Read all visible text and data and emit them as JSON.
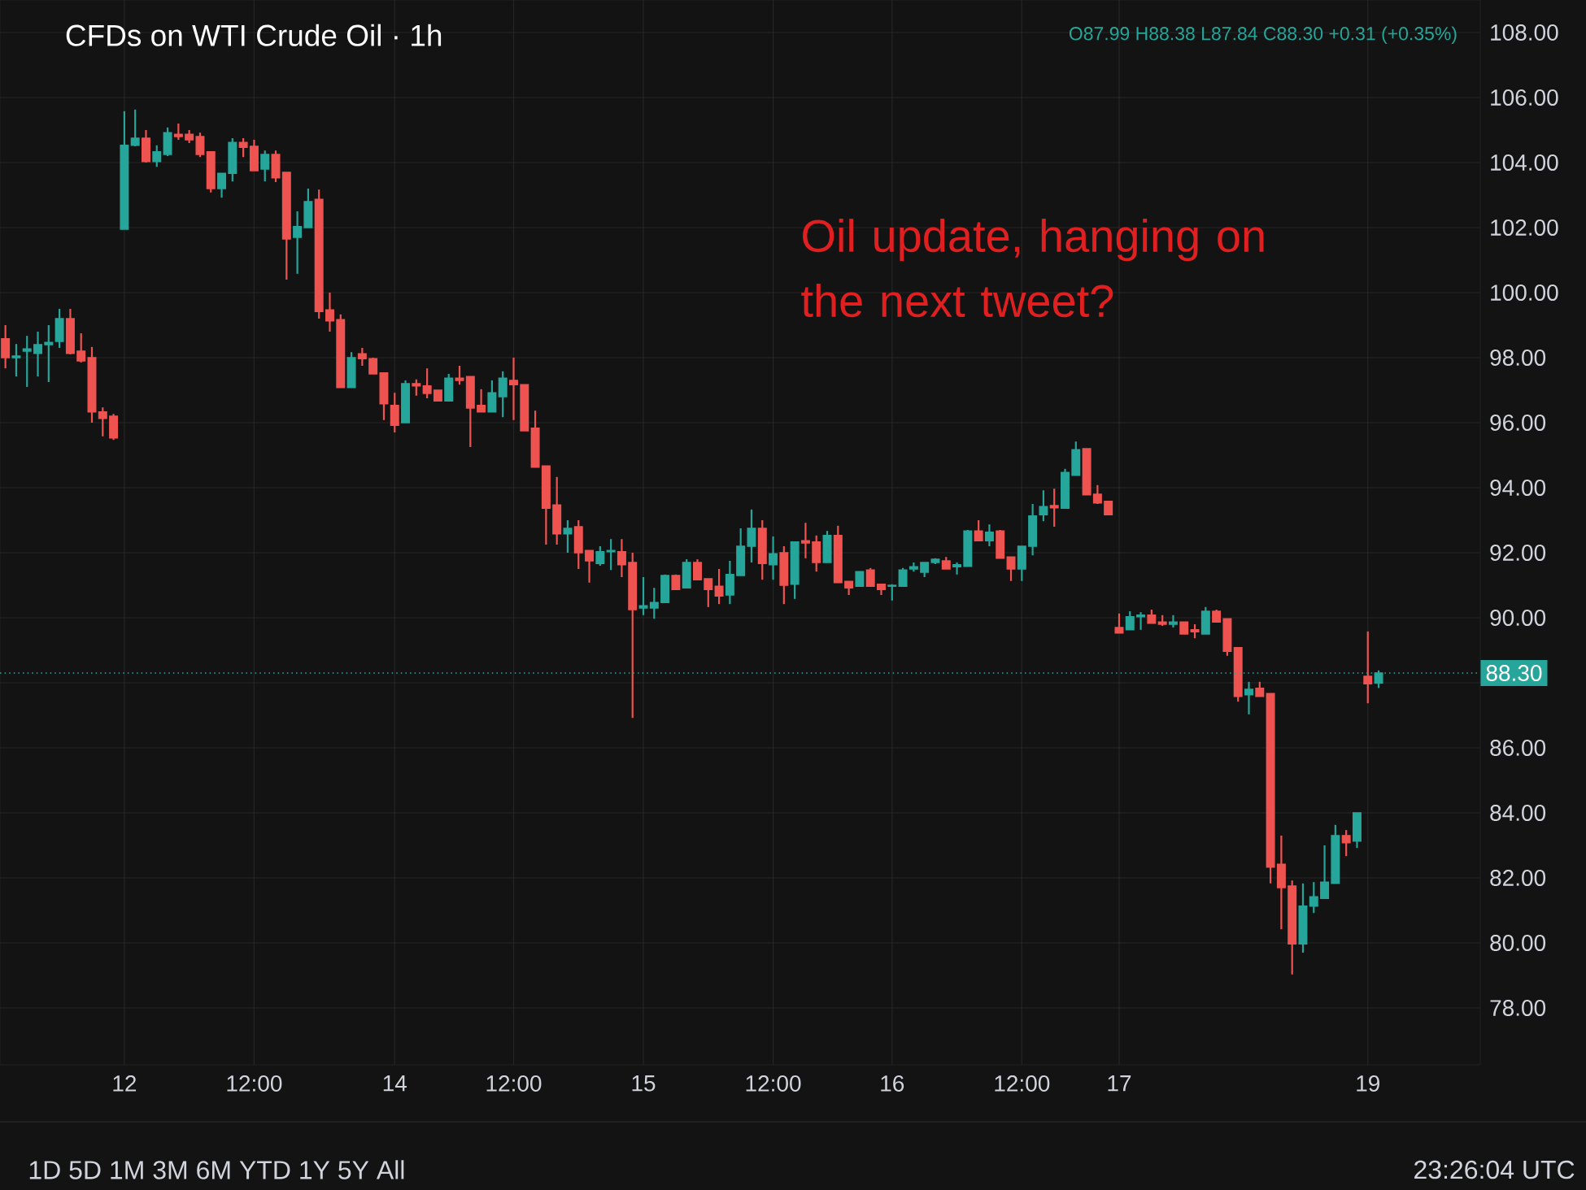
{
  "chart_data": {
    "type": "candlestick",
    "title": "CFDs on WTI Crude Oil · 1h",
    "annotations": [
      "O87.99 H88.38 L87.84 C88.30 +0.31 (+0.35%)",
      "Oil update, hanging on the next tweet?",
      "1D 5D 1M 3M 6M YTD 1Y 5Y All",
      "23:26:04 UTC"
    ],
    "categories": [
      null,
      null,
      null,
      null,
      null,
      null,
      null,
      null,
      null,
      null,
      null,
      "12",
      null,
      null,
      null,
      null,
      null,
      null,
      null,
      null,
      null,
      null,
      null,
      "12:00",
      null,
      null,
      null,
      null,
      null,
      null,
      null,
      null,
      null,
      null,
      null,
      null,
      "14",
      null,
      null,
      null,
      null,
      null,
      null,
      null,
      null,
      null,
      null,
      "12:00",
      null,
      null,
      null,
      null,
      null,
      null,
      null,
      null,
      null,
      null,
      null,
      "15",
      null,
      null,
      null,
      null,
      null,
      null,
      null,
      null,
      null,
      null,
      null,
      "12:00",
      null,
      null,
      null,
      null,
      null,
      null,
      null,
      null,
      null,
      null,
      "16",
      null,
      null,
      null,
      null,
      null,
      null,
      null,
      null,
      null,
      null,
      null,
      "12:00",
      null,
      null,
      null,
      null,
      null,
      null,
      null,
      null,
      "17",
      null,
      null,
      null,
      null,
      null,
      null,
      null,
      null,
      null,
      null,
      null,
      null,
      null,
      null,
      null,
      null,
      null,
      null,
      null,
      null,
      null,
      null,
      "19",
      null
    ],
    "ohlc": [
      [
        98.58,
        99.0,
        97.67,
        98.0
      ],
      [
        98.0,
        98.42,
        97.42,
        98.05
      ],
      [
        98.2,
        98.67,
        97.1,
        98.27
      ],
      [
        98.13,
        98.8,
        97.42,
        98.4
      ],
      [
        98.4,
        99.0,
        97.25,
        98.47
      ],
      [
        98.5,
        99.5,
        98.3,
        99.2
      ],
      [
        99.2,
        99.5,
        98.1,
        98.13
      ],
      [
        98.2,
        98.75,
        97.85,
        97.9
      ],
      [
        98.0,
        98.33,
        96.0,
        96.33
      ],
      [
        96.33,
        96.47,
        95.58,
        96.13
      ],
      [
        96.2,
        96.27,
        95.47,
        95.53
      ],
      [
        101.95,
        105.58,
        101.95,
        104.53
      ],
      [
        104.53,
        105.63,
        104.5,
        104.75
      ],
      [
        104.75,
        105.0,
        104.0,
        104.03
      ],
      [
        104.03,
        104.53,
        103.87,
        104.33
      ],
      [
        104.25,
        105.08,
        104.2,
        104.92
      ],
      [
        104.87,
        105.2,
        104.7,
        104.8
      ],
      [
        104.87,
        105.0,
        104.6,
        104.7
      ],
      [
        104.8,
        104.92,
        104.17,
        104.25
      ],
      [
        104.33,
        104.33,
        103.08,
        103.2
      ],
      [
        103.2,
        103.67,
        102.92,
        103.67
      ],
      [
        103.67,
        104.75,
        103.42,
        104.62
      ],
      [
        104.62,
        104.75,
        104.17,
        104.47
      ],
      [
        104.5,
        104.7,
        103.75,
        103.75
      ],
      [
        103.8,
        104.37,
        103.42,
        104.25
      ],
      [
        104.25,
        104.37,
        103.4,
        103.53
      ],
      [
        103.7,
        103.7,
        100.4,
        101.65
      ],
      [
        101.7,
        102.5,
        100.58,
        102.03
      ],
      [
        102.0,
        103.2,
        102.0,
        102.8
      ],
      [
        102.87,
        103.17,
        99.2,
        99.42
      ],
      [
        99.47,
        100.0,
        98.8,
        99.13
      ],
      [
        99.17,
        99.33,
        97.08,
        97.08
      ],
      [
        97.08,
        98.17,
        97.08,
        98.0
      ],
      [
        98.12,
        98.3,
        97.75,
        97.97
      ],
      [
        97.97,
        98.0,
        97.5,
        97.5
      ],
      [
        97.53,
        97.53,
        96.08,
        96.58
      ],
      [
        96.53,
        96.92,
        95.7,
        95.92
      ],
      [
        96.0,
        97.3,
        96.0,
        97.2
      ],
      [
        97.2,
        97.33,
        96.83,
        97.13
      ],
      [
        97.13,
        97.67,
        96.75,
        96.9
      ],
      [
        97.0,
        97.0,
        96.67,
        96.67
      ],
      [
        96.67,
        97.5,
        96.67,
        97.37
      ],
      [
        97.37,
        97.75,
        97.17,
        97.3
      ],
      [
        97.42,
        97.42,
        95.25,
        96.45
      ],
      [
        96.53,
        97.03,
        96.33,
        96.33
      ],
      [
        96.33,
        97.3,
        96.33,
        96.92
      ],
      [
        96.8,
        97.58,
        96.17,
        97.37
      ],
      [
        97.3,
        98.0,
        96.08,
        97.17
      ],
      [
        97.17,
        97.17,
        95.75,
        95.75
      ],
      [
        95.83,
        96.37,
        94.63,
        94.63
      ],
      [
        94.67,
        94.67,
        92.25,
        93.37
      ],
      [
        93.47,
        94.33,
        92.25,
        92.58
      ],
      [
        92.58,
        93.0,
        92.0,
        92.75
      ],
      [
        92.8,
        93.0,
        91.5,
        92.0
      ],
      [
        92.07,
        92.07,
        91.08,
        91.75
      ],
      [
        91.67,
        92.2,
        91.6,
        92.03
      ],
      [
        92.03,
        92.42,
        91.47,
        92.07
      ],
      [
        92.03,
        92.42,
        91.25,
        91.63
      ],
      [
        91.7,
        92.0,
        86.92,
        90.25
      ],
      [
        90.3,
        91.25,
        90.08,
        90.37
      ],
      [
        90.3,
        90.92,
        89.97,
        90.47
      ],
      [
        90.47,
        91.33,
        90.47,
        91.3
      ],
      [
        91.3,
        91.33,
        90.87,
        90.87
      ],
      [
        90.92,
        91.8,
        90.92,
        91.7
      ],
      [
        91.7,
        91.8,
        91.17,
        91.17
      ],
      [
        91.2,
        91.2,
        90.33,
        90.87
      ],
      [
        90.97,
        91.5,
        90.42,
        90.67
      ],
      [
        90.7,
        91.75,
        90.42,
        91.33
      ],
      [
        91.3,
        92.75,
        91.3,
        92.2
      ],
      [
        92.2,
        93.33,
        91.7,
        92.75
      ],
      [
        92.75,
        93.0,
        91.17,
        91.67
      ],
      [
        91.63,
        92.5,
        91.17,
        91.97
      ],
      [
        92.0,
        92.2,
        90.42,
        91.0
      ],
      [
        91.03,
        92.33,
        90.58,
        92.33
      ],
      [
        92.37,
        92.92,
        91.83,
        92.3
      ],
      [
        92.33,
        92.53,
        91.42,
        91.7
      ],
      [
        91.7,
        92.67,
        91.7,
        92.53
      ],
      [
        92.53,
        92.83,
        91.08,
        91.08
      ],
      [
        91.12,
        91.12,
        90.7,
        90.92
      ],
      [
        90.97,
        91.42,
        90.97,
        91.42
      ],
      [
        91.47,
        91.53,
        90.97,
        90.97
      ],
      [
        91.03,
        91.03,
        90.7,
        90.87
      ],
      [
        90.97,
        91.03,
        90.53,
        91.0
      ],
      [
        90.97,
        91.53,
        90.97,
        91.47
      ],
      [
        91.5,
        91.7,
        91.42,
        91.57
      ],
      [
        91.4,
        91.7,
        91.25,
        91.7
      ],
      [
        91.7,
        91.83,
        91.65,
        91.8
      ],
      [
        91.75,
        91.87,
        91.5,
        91.5
      ],
      [
        91.57,
        91.7,
        91.33,
        91.63
      ],
      [
        91.58,
        92.7,
        91.58,
        92.67
      ],
      [
        92.67,
        93.0,
        92.37,
        92.37
      ],
      [
        92.37,
        92.87,
        92.2,
        92.63
      ],
      [
        92.67,
        92.7,
        91.83,
        91.83
      ],
      [
        91.87,
        91.87,
        91.13,
        91.5
      ],
      [
        91.5,
        92.2,
        91.13,
        92.2
      ],
      [
        92.2,
        93.5,
        91.92,
        93.13
      ],
      [
        93.17,
        93.92,
        92.97,
        93.42
      ],
      [
        93.45,
        93.97,
        92.8,
        93.38
      ],
      [
        93.37,
        94.58,
        93.37,
        94.47
      ],
      [
        94.38,
        95.42,
        94.38,
        95.17
      ],
      [
        95.2,
        95.2,
        93.78,
        93.78
      ],
      [
        93.8,
        94.08,
        93.5,
        93.53
      ],
      [
        93.58,
        93.58,
        93.17,
        93.17
      ],
      [
        89.7,
        90.13,
        89.53,
        89.53
      ],
      [
        89.63,
        90.2,
        89.63,
        90.03
      ],
      [
        90.03,
        90.17,
        89.63,
        90.08
      ],
      [
        90.08,
        90.25,
        89.83,
        89.83
      ],
      [
        89.87,
        90.08,
        89.75,
        89.8
      ],
      [
        89.8,
        90.08,
        89.7,
        89.87
      ],
      [
        89.87,
        89.87,
        89.5,
        89.5
      ],
      [
        89.63,
        89.8,
        89.37,
        89.57
      ],
      [
        89.5,
        90.33,
        89.5,
        90.2
      ],
      [
        90.2,
        90.25,
        89.87,
        89.87
      ],
      [
        89.97,
        89.97,
        88.83,
        88.97
      ],
      [
        89.08,
        89.08,
        87.42,
        87.58
      ],
      [
        87.63,
        88.03,
        87.03,
        87.8
      ],
      [
        87.83,
        88.03,
        87.58,
        87.58
      ],
      [
        87.67,
        87.67,
        81.83,
        82.33
      ],
      [
        82.42,
        83.3,
        80.42,
        81.7
      ],
      [
        81.75,
        81.92,
        79.03,
        79.97
      ],
      [
        79.97,
        81.83,
        79.7,
        81.13
      ],
      [
        81.13,
        81.87,
        80.92,
        81.42
      ],
      [
        81.37,
        83.0,
        81.37,
        81.87
      ],
      [
        81.83,
        83.63,
        81.83,
        83.3
      ],
      [
        83.3,
        83.47,
        82.67,
        83.08
      ],
      [
        83.13,
        84.0,
        82.92,
        84.0
      ],
      [
        88.2,
        89.58,
        87.37,
        87.97
      ],
      [
        87.99,
        88.38,
        87.84,
        88.3
      ]
    ],
    "colors": [
      "#ef5350",
      "#26a69a",
      "#26a69a",
      "#26a69a",
      "#26a69a",
      "#26a69a",
      "#ef5350",
      "#ef5350",
      "#ef5350",
      "#ef5350",
      "#ef5350",
      "#26a69a",
      "#26a69a",
      "#ef5350",
      "#26a69a",
      "#26a69a",
      "#ef5350",
      "#ef5350",
      "#ef5350",
      "#ef5350",
      "#26a69a",
      "#26a69a",
      "#ef5350",
      "#ef5350",
      "#26a69a",
      "#ef5350",
      "#ef5350",
      "#26a69a",
      "#26a69a",
      "#ef5350",
      "#ef5350",
      "#ef5350",
      "#26a69a",
      "#ef5350",
      "#ef5350",
      "#ef5350",
      "#ef5350",
      "#26a69a",
      "#ef5350",
      "#ef5350",
      "#ef5350",
      "#26a69a",
      "#ef5350",
      "#ef5350",
      "#ef5350",
      "#26a69a",
      "#26a69a",
      "#ef5350",
      "#ef5350",
      "#ef5350",
      "#ef5350",
      "#ef5350",
      "#26a69a",
      "#ef5350",
      "#ef5350",
      "#26a69a",
      "#26a69a",
      "#ef5350",
      "#ef5350",
      "#26a69a",
      "#26a69a",
      "#26a69a",
      "#ef5350",
      "#26a69a",
      "#ef5350",
      "#ef5350",
      "#ef5350",
      "#26a69a",
      "#26a69a",
      "#26a69a",
      "#ef5350",
      "#26a69a",
      "#ef5350",
      "#26a69a",
      "#ef5350",
      "#ef5350",
      "#26a69a",
      "#ef5350",
      "#ef5350",
      "#26a69a",
      "#ef5350",
      "#ef5350",
      "#26a69a",
      "#26a69a",
      "#26a69a",
      "#26a69a",
      "#26a69a",
      "#ef5350",
      "#26a69a",
      "#26a69a",
      "#ef5350",
      "#26a69a",
      "#ef5350",
      "#ef5350",
      "#26a69a",
      "#26a69a",
      "#26a69a",
      "#ef5350",
      "#26a69a",
      "#26a69a",
      "#ef5350",
      "#ef5350",
      "#ef5350",
      "#ef5350",
      "#26a69a",
      "#26a69a",
      "#ef5350",
      "#ef5350",
      "#26a69a",
      "#ef5350",
      "#ef5350",
      "#26a69a",
      "#ef5350",
      "#ef5350",
      "#ef5350",
      "#26a69a",
      "#ef5350",
      "#ef5350",
      "#ef5350",
      "#ef5350",
      "#26a69a",
      "#26a69a",
      "#26a69a",
      "#26a69a",
      "#ef5350",
      "#26a69a",
      "#ef5350",
      "#26a69a"
    ],
    "ylim": [
      76.25,
      109
    ],
    "yticks": [
      {
        "value": 78,
        "label": "78.00"
      },
      {
        "value": 80,
        "label": "80.00"
      },
      {
        "value": 82,
        "label": "82.00"
      },
      {
        "value": 84,
        "label": "84.00"
      },
      {
        "value": 86,
        "label": "86.00"
      },
      {
        "value": 88,
        "label": null
      },
      {
        "value": 90,
        "label": "90.00"
      },
      {
        "value": 92,
        "label": "92.00"
      },
      {
        "value": 94,
        "label": "94.00"
      },
      {
        "value": 96,
        "label": "96.00"
      },
      {
        "value": 98,
        "label": "98.00"
      },
      {
        "value": 100,
        "label": "100.00"
      },
      {
        "value": 102,
        "label": "102.00"
      },
      {
        "value": 104,
        "label": "104.00"
      },
      {
        "value": 106,
        "label": "106.00"
      },
      {
        "value": 108,
        "label": "108.00"
      }
    ],
    "ref_lines": [
      {
        "axis": "y",
        "value": 88.3,
        "label": "88.30",
        "color": "#26a69a",
        "line_style": "dotted"
      }
    ],
    "grid": true
  }
}
